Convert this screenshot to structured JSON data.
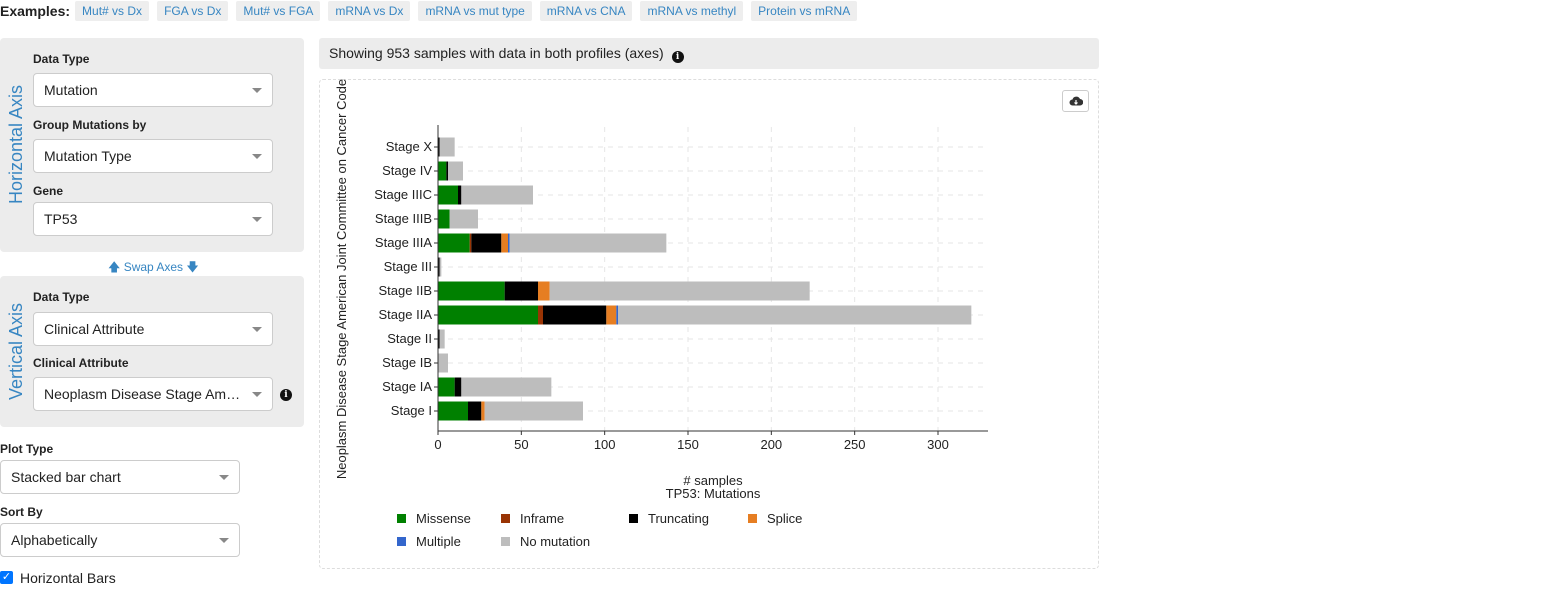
{
  "examples": {
    "label": "Examples:",
    "items": [
      "Mut# vs Dx",
      "FGA vs Dx",
      "Mut# vs FGA",
      "mRNA vs Dx",
      "mRNA vs mut type",
      "mRNA vs CNA",
      "mRNA vs methyl",
      "Protein vs mRNA"
    ]
  },
  "horizontal_axis": {
    "title": "Horizontal Axis",
    "data_type_label": "Data Type",
    "data_type_value": "Mutation",
    "group_label": "Group Mutations by",
    "group_value": "Mutation Type",
    "gene_label": "Gene",
    "gene_value": "TP53"
  },
  "swap_label": "Swap Axes",
  "vertical_axis": {
    "title": "Vertical Axis",
    "data_type_label": "Data Type",
    "data_type_value": "Clinical Attribute",
    "attribute_label": "Clinical Attribute",
    "attribute_value": "Neoplasm Disease Stage American Joint Committee on Cancer Code"
  },
  "plot_type": {
    "label": "Plot Type",
    "value": "Stacked bar chart"
  },
  "sort_by": {
    "label": "Sort By",
    "value": "Alphabetically"
  },
  "horizontal_bars": {
    "label": "Horizontal Bars",
    "checked": true
  },
  "header_text": "Showing 953 samples with data in both profiles (axes)",
  "chart_data": {
    "type": "bar",
    "orientation": "horizontal",
    "stacked": true,
    "categories": [
      "Stage X",
      "Stage IV",
      "Stage IIIC",
      "Stage IIIB",
      "Stage IIIA",
      "Stage III",
      "Stage IIB",
      "Stage IIA",
      "Stage II",
      "Stage IB",
      "Stage IA",
      "Stage I"
    ],
    "series": [
      {
        "name": "Missense",
        "color": "#008000",
        "values": [
          0,
          5,
          12,
          7,
          19,
          0,
          40,
          60,
          0,
          0,
          10,
          18
        ]
      },
      {
        "name": "Inframe",
        "color": "#993404",
        "values": [
          0,
          0,
          0,
          0,
          1,
          0,
          0,
          3,
          0,
          0,
          0,
          0
        ]
      },
      {
        "name": "Truncating",
        "color": "#000000",
        "values": [
          1,
          1,
          2,
          0,
          18,
          1,
          20,
          38,
          1,
          0,
          4,
          8
        ]
      },
      {
        "name": "Splice",
        "color": "#e67e22",
        "values": [
          0,
          0,
          0,
          0,
          4,
          0,
          7,
          6,
          0,
          0,
          0,
          2
        ]
      },
      {
        "name": "Multiple",
        "color": "#3366cc",
        "values": [
          0,
          0,
          0,
          0,
          1,
          0,
          0,
          1,
          0,
          0,
          0,
          0
        ]
      },
      {
        "name": "No mutation",
        "color": "#bdbdbd",
        "values": [
          9,
          9,
          43,
          17,
          94,
          1,
          156,
          212,
          3,
          6,
          54,
          59
        ]
      }
    ],
    "ylabel": "Neoplasm Disease Stage American Joint Committee on Cancer Code",
    "xlabel": "# samples",
    "xlabel2": "TP53: Mutations",
    "xticks": [
      0,
      50,
      100,
      150,
      200,
      250,
      300
    ],
    "xlim": [
      0,
      330
    ],
    "grid": true,
    "legend_position": "bottom"
  }
}
